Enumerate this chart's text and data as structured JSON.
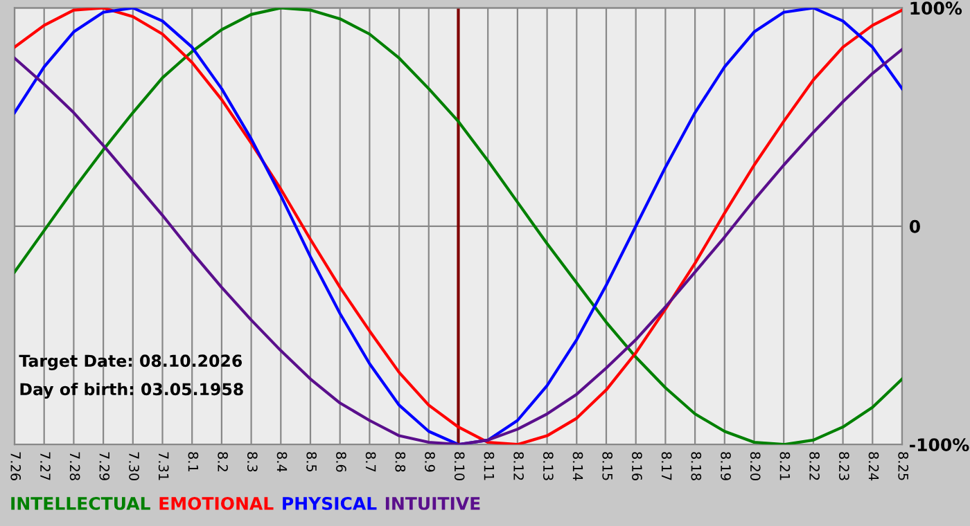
{
  "chart_data": {
    "type": "line",
    "categories": [
      "7.26",
      "7.27",
      "7.28",
      "7.29",
      "7.30",
      "7.31",
      "8.1",
      "8.2",
      "8.3",
      "8.4",
      "8.5",
      "8.6",
      "8.7",
      "8.8",
      "8.9",
      "8.10",
      "8.11",
      "8.12",
      "8.13",
      "8.14",
      "8.15",
      "8.16",
      "8.17",
      "8.18",
      "8.19",
      "8.20",
      "8.21",
      "8.22",
      "8.23",
      "8.24",
      "8.25"
    ],
    "series": [
      {
        "name": "INTELLECTUAL",
        "color": "#008000",
        "values": [
          -21,
          -2,
          17,
          35,
          52,
          68,
          80,
          90,
          97,
          100,
          99,
          95,
          88,
          77,
          63,
          48,
          30,
          11,
          -8,
          -26,
          -44,
          -60,
          -74,
          -86,
          -94,
          -99,
          -100,
          -98,
          -92,
          -83,
          -70
        ]
      },
      {
        "name": "EMOTIONAL",
        "color": "#ff0000",
        "values": [
          82,
          92,
          99,
          100,
          96,
          88,
          75,
          58,
          38,
          17,
          -6,
          -28,
          -48,
          -67,
          -82,
          -92,
          -99,
          -100,
          -96,
          -88,
          -75,
          -58,
          -38,
          -17,
          6,
          28,
          48,
          67,
          82,
          92,
          99
        ]
      },
      {
        "name": "PHYSICAL",
        "color": "#0000ff",
        "values": [
          52,
          73,
          89,
          98,
          100,
          94,
          82,
          63,
          40,
          14,
          -14,
          -40,
          -63,
          -82,
          -94,
          -100,
          -98,
          -89,
          -73,
          -52,
          -27,
          0,
          27,
          52,
          73,
          89,
          98,
          100,
          94,
          82,
          63
        ]
      },
      {
        "name": "INTUITIVE",
        "color": "#5a0f8c",
        "values": [
          77,
          65,
          52,
          37,
          21,
          5,
          -12,
          -28,
          -43,
          -57,
          -70,
          -81,
          -89,
          -96,
          -99,
          -100,
          -98,
          -93,
          -86,
          -77,
          -65,
          -52,
          -37,
          -21,
          -5,
          12,
          28,
          43,
          57,
          70,
          81
        ]
      }
    ],
    "ylim": [
      -100,
      100
    ],
    "yticks": [
      {
        "value": 100,
        "label": "100%"
      },
      0,
      {
        "value": -100,
        "label": "-100%"
      }
    ],
    "grid": true,
    "legend": "bottom",
    "ref_lines": [
      {
        "axis": "x",
        "value": "8.10",
        "label": null,
        "color": "#800000"
      }
    ],
    "annotations": [
      "Target Date: 08.10.2026",
      "Day of birth: 03.05.1958"
    ]
  }
}
